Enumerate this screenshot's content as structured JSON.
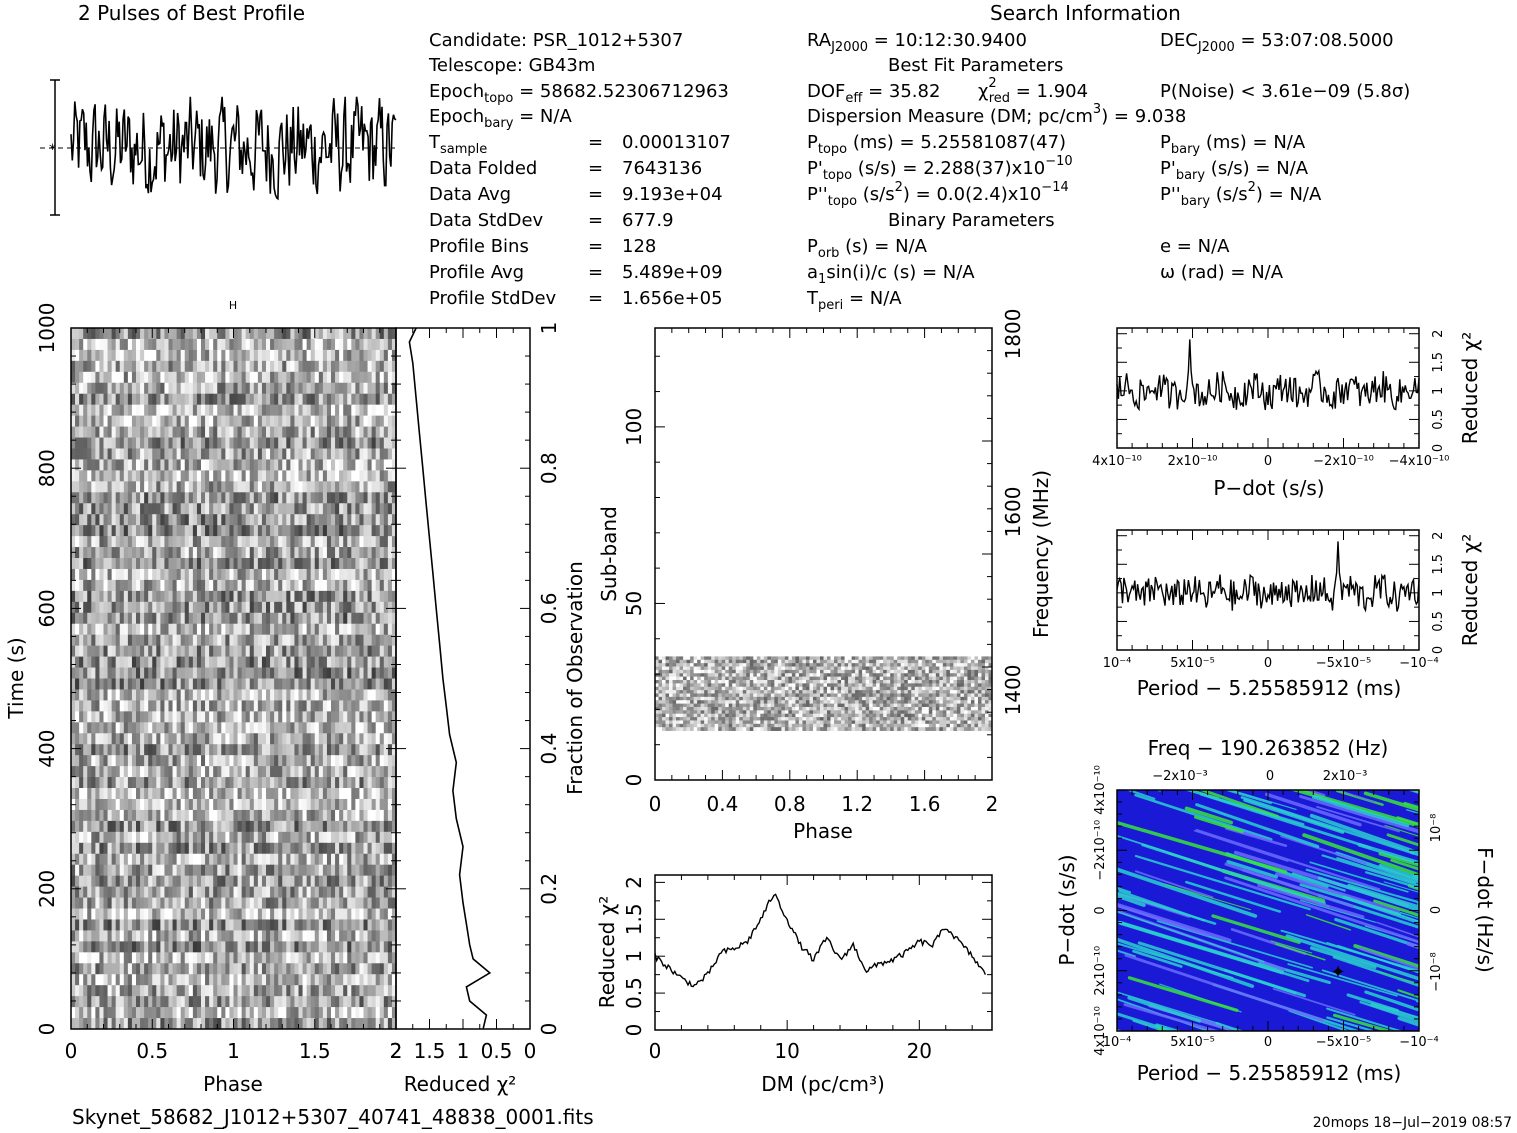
{
  "profile": {
    "title": "2 Pulses of Best Profile"
  },
  "header_text": {
    "search_information": "Search Information",
    "best_fit_parameters": "Best Fit Parameters",
    "binary_parameters": "Binary Parameters",
    "candidate": "Candidate:  PSR_1012+5307",
    "telescope": "Telescope:  GB43m",
    "epoch_topo": "Epoch",
    "epoch_topo_sub": "topo",
    "epoch_topo_val": " = 58682.52306712963",
    "epoch_bary": "Epoch",
    "epoch_bary_sub": "bary",
    "epoch_bary_val": " = N/A",
    "tsample": "T",
    "tsample_sub": "sample",
    "tsample_eq": "=",
    "tsample_val": "0.00013107",
    "data_folded": "Data Folded",
    "data_folded_val": "7643136",
    "data_avg": "Data Avg",
    "data_avg_val": "9.193e+04",
    "data_stddev": "Data StdDev",
    "data_stddev_val": "677.9",
    "profile_bins": "Profile Bins",
    "profile_bins_val": "128",
    "profile_avg": "Profile Avg",
    "profile_avg_val": "5.489e+09",
    "profile_stddev": "Profile StdDev",
    "profile_stddev_val": "1.656e+05",
    "eq": "=",
    "ra": "RA",
    "ra_sub": "J2000",
    "ra_val": " = 10:12:30.9400",
    "dec": "DEC",
    "dec_sub": "J2000",
    "dec_val": " = 53:07:08.5000",
    "dof": "DOF",
    "dof_sub": "eff",
    "dof_val": " = 35.82",
    "chi": "χ",
    "chi_sup": "2",
    "chi_sub": "red",
    "chi_val": " = 1.904",
    "pnoise": "P(Noise) < 3.61e−09   (5.8σ)",
    "dm_line": "Dispersion Measure (DM; pc/cm",
    "dm_sup": "3",
    "dm_val": ") = 9.038",
    "ptopo": "P",
    "ptopo_sub": "topo",
    "ptopo_val": " (ms) =  5.25581087(47)",
    "pbary": "P",
    "pbary_sub": "bary",
    "pbary_val": " (ms) = N/A",
    "pdtopo": "P'",
    "pdtopo_sub": "topo",
    "pdtopo_val": " (s/s) =  2.288(37)x10",
    "pdtopo_exp": "−10",
    "pdbary": "P'",
    "pdbary_sub": "bary",
    "pdbary_val": " (s/s) = N/A",
    "pddtopo": "P''",
    "pddtopo_sub": "topo",
    "pddtopo_val": " (s/s",
    "pddtopo_sq": "2",
    "pddtopo_val2": ") = 0.0(2.4)x10",
    "pddtopo_exp": "−14",
    "pddbary": "P''",
    "pddbary_sub": "bary",
    "pddbary_val": " (s/s",
    "pddbary_sq": "2",
    "pddbary_val2": ") = N/A",
    "porb": "P",
    "porb_sub": "orb",
    "porb_val": " (s) = N/A",
    "ecc": "e = N/A",
    "asini": "a",
    "asini_sub": "1",
    "asini_val": "sin(i)/c (s) = N/A",
    "omega": "ω (rad) = N/A",
    "tperi": "T",
    "tperi_sub": "peri",
    "tperi_val": " = N/A"
  },
  "footer": {
    "filename": "Skynet_58682_J1012+5307_40741_48838_0001.fits",
    "stamp": "20mops  18−Jul−2019 08:57"
  },
  "chart_data": [
    {
      "type": "line",
      "id": "pulse-profile",
      "title": "2 Pulses of Best Profile",
      "x_range": [
        0,
        2
      ],
      "note": "noisy profile, two pulses, no axis labels"
    },
    {
      "type": "heatmap",
      "id": "time-phase",
      "xlabel": "Phase",
      "ylabel": "Time (s)",
      "x_ticks": [
        "0",
        "0.5",
        "1",
        "1.5",
        "2"
      ],
      "y_ticks": [
        "0",
        "200",
        "400",
        "600",
        "800",
        "1000"
      ],
      "xlim": [
        0,
        2
      ],
      "ylim": [
        0,
        1000
      ],
      "colormap": "grayscale"
    },
    {
      "type": "line",
      "id": "time-chi2",
      "xlabel": "Reduced χ²",
      "ylabel": "Fraction of Observation",
      "x_ticks": [
        "2",
        "1.5",
        "1",
        "0.5",
        "0"
      ],
      "y_ticks": [
        "0",
        "0.2",
        "0.4",
        "0.6",
        "0.8",
        "1"
      ],
      "xlim": [
        2,
        0
      ],
      "ylim": [
        0,
        1
      ],
      "points": [
        [
          0.7,
          0.0
        ],
        [
          0.65,
          0.02
        ],
        [
          0.9,
          0.04
        ],
        [
          0.95,
          0.06
        ],
        [
          0.6,
          0.08
        ],
        [
          0.85,
          0.1
        ],
        [
          0.9,
          0.12
        ],
        [
          0.95,
          0.15
        ],
        [
          1.0,
          0.18
        ],
        [
          1.05,
          0.22
        ],
        [
          1.0,
          0.26
        ],
        [
          1.1,
          0.3
        ],
        [
          1.15,
          0.34
        ],
        [
          1.1,
          0.38
        ],
        [
          1.2,
          0.42
        ],
        [
          1.25,
          0.46
        ],
        [
          1.3,
          0.5
        ],
        [
          1.35,
          0.55
        ],
        [
          1.4,
          0.6
        ],
        [
          1.45,
          0.65
        ],
        [
          1.5,
          0.7
        ],
        [
          1.55,
          0.75
        ],
        [
          1.6,
          0.8
        ],
        [
          1.65,
          0.85
        ],
        [
          1.7,
          0.9
        ],
        [
          1.75,
          0.95
        ],
        [
          1.8,
          0.98
        ],
        [
          1.7,
          1.0
        ]
      ]
    },
    {
      "type": "heatmap",
      "id": "subband-phase",
      "xlabel": "Phase",
      "ylabel": "Sub-band",
      "y2label": "Frequency (MHz)",
      "x_ticks": [
        "0",
        "0.4",
        "0.8",
        "1.2",
        "1.6",
        "2"
      ],
      "y_ticks": [
        "0",
        "50",
        "100"
      ],
      "y2_ticks": [
        "1400",
        "1600",
        "1800"
      ],
      "xlim": [
        0,
        2
      ],
      "ylim": [
        0,
        128
      ],
      "data_band": [
        14,
        35
      ],
      "colormap": "grayscale"
    },
    {
      "type": "line",
      "id": "dm-chi2",
      "xlabel": "DM (pc/cm³)",
      "ylabel": "Reduced χ²",
      "x_ticks": [
        "0",
        "10",
        "20"
      ],
      "y_ticks": [
        "0",
        "0.5",
        "1",
        "1.5",
        "2"
      ],
      "xlim": [
        0,
        25.5
      ],
      "ylim": [
        0,
        2.1
      ],
      "points": [
        [
          0,
          1.0
        ],
        [
          1,
          0.85
        ],
        [
          2,
          0.7
        ],
        [
          3,
          0.6
        ],
        [
          4,
          0.75
        ],
        [
          5,
          1.05
        ],
        [
          6,
          1.1
        ],
        [
          7,
          1.2
        ],
        [
          8,
          1.5
        ],
        [
          9,
          1.85
        ],
        [
          10,
          1.5
        ],
        [
          11,
          1.15
        ],
        [
          12,
          0.95
        ],
        [
          13,
          1.25
        ],
        [
          14,
          0.95
        ],
        [
          15,
          1.15
        ],
        [
          16,
          0.8
        ],
        [
          17,
          0.9
        ],
        [
          18,
          0.95
        ],
        [
          19,
          1.05
        ],
        [
          20,
          1.2
        ],
        [
          21,
          1.15
        ],
        [
          22,
          1.4
        ],
        [
          23,
          1.2
        ],
        [
          24,
          1.0
        ],
        [
          25,
          0.75
        ]
      ]
    },
    {
      "type": "line",
      "id": "pdot-chi2",
      "xlabel": "P−dot (s/s)",
      "ylabel": "Reduced χ²",
      "x_ticks": [
        "4x10⁻¹⁰",
        "2x10⁻¹⁰",
        "0",
        "−2x10⁻¹⁰",
        "−4x10⁻¹⁰"
      ],
      "y_ticks": [
        "0",
        "0.5",
        "1",
        "1.5",
        "2"
      ],
      "ylim": [
        0,
        2.1
      ],
      "peak_at_tick": "2x10⁻¹⁰",
      "peak_value": 1.9
    },
    {
      "type": "line",
      "id": "period-chi2",
      "xlabel": "Period − 5.25585912 (ms)",
      "ylabel": "Reduced χ²",
      "x_ticks": [
        "10⁻⁴",
        "5x10⁻⁵",
        "0",
        "−5x10⁻⁵",
        "−10⁻⁴"
      ],
      "y_ticks": [
        "0",
        "0.5",
        "1",
        "1.5",
        "2"
      ],
      "ylim": [
        0,
        2.1
      ],
      "peak_at_tick": "−5x10⁻⁵",
      "peak_value": 1.9
    },
    {
      "type": "heatmap",
      "id": "period-pdot",
      "title": "Freq − 190.263852 (Hz)",
      "xlabel": "Period − 5.25585912 (ms)",
      "ylabel": "P−dot (s/s)",
      "y2label": "F−dot (Hz/s)",
      "x_ticks": [
        "10⁻⁴",
        "5x10⁻⁵",
        "0",
        "−5x10⁻⁵",
        "−10⁻⁴"
      ],
      "x2_ticks": [
        "−2x10⁻³",
        "0",
        "2x10⁻³"
      ],
      "y_ticks": [
        "4x10⁻¹⁰",
        "2x10⁻¹⁰",
        "0",
        "−2x10⁻¹⁰",
        "4x10⁻¹⁰"
      ],
      "y2_ticks": [
        "10⁻⁸",
        "0",
        "−10⁻⁸"
      ],
      "colors": [
        "#1a1ad6",
        "#2ad0d0",
        "#38e638"
      ]
    }
  ]
}
